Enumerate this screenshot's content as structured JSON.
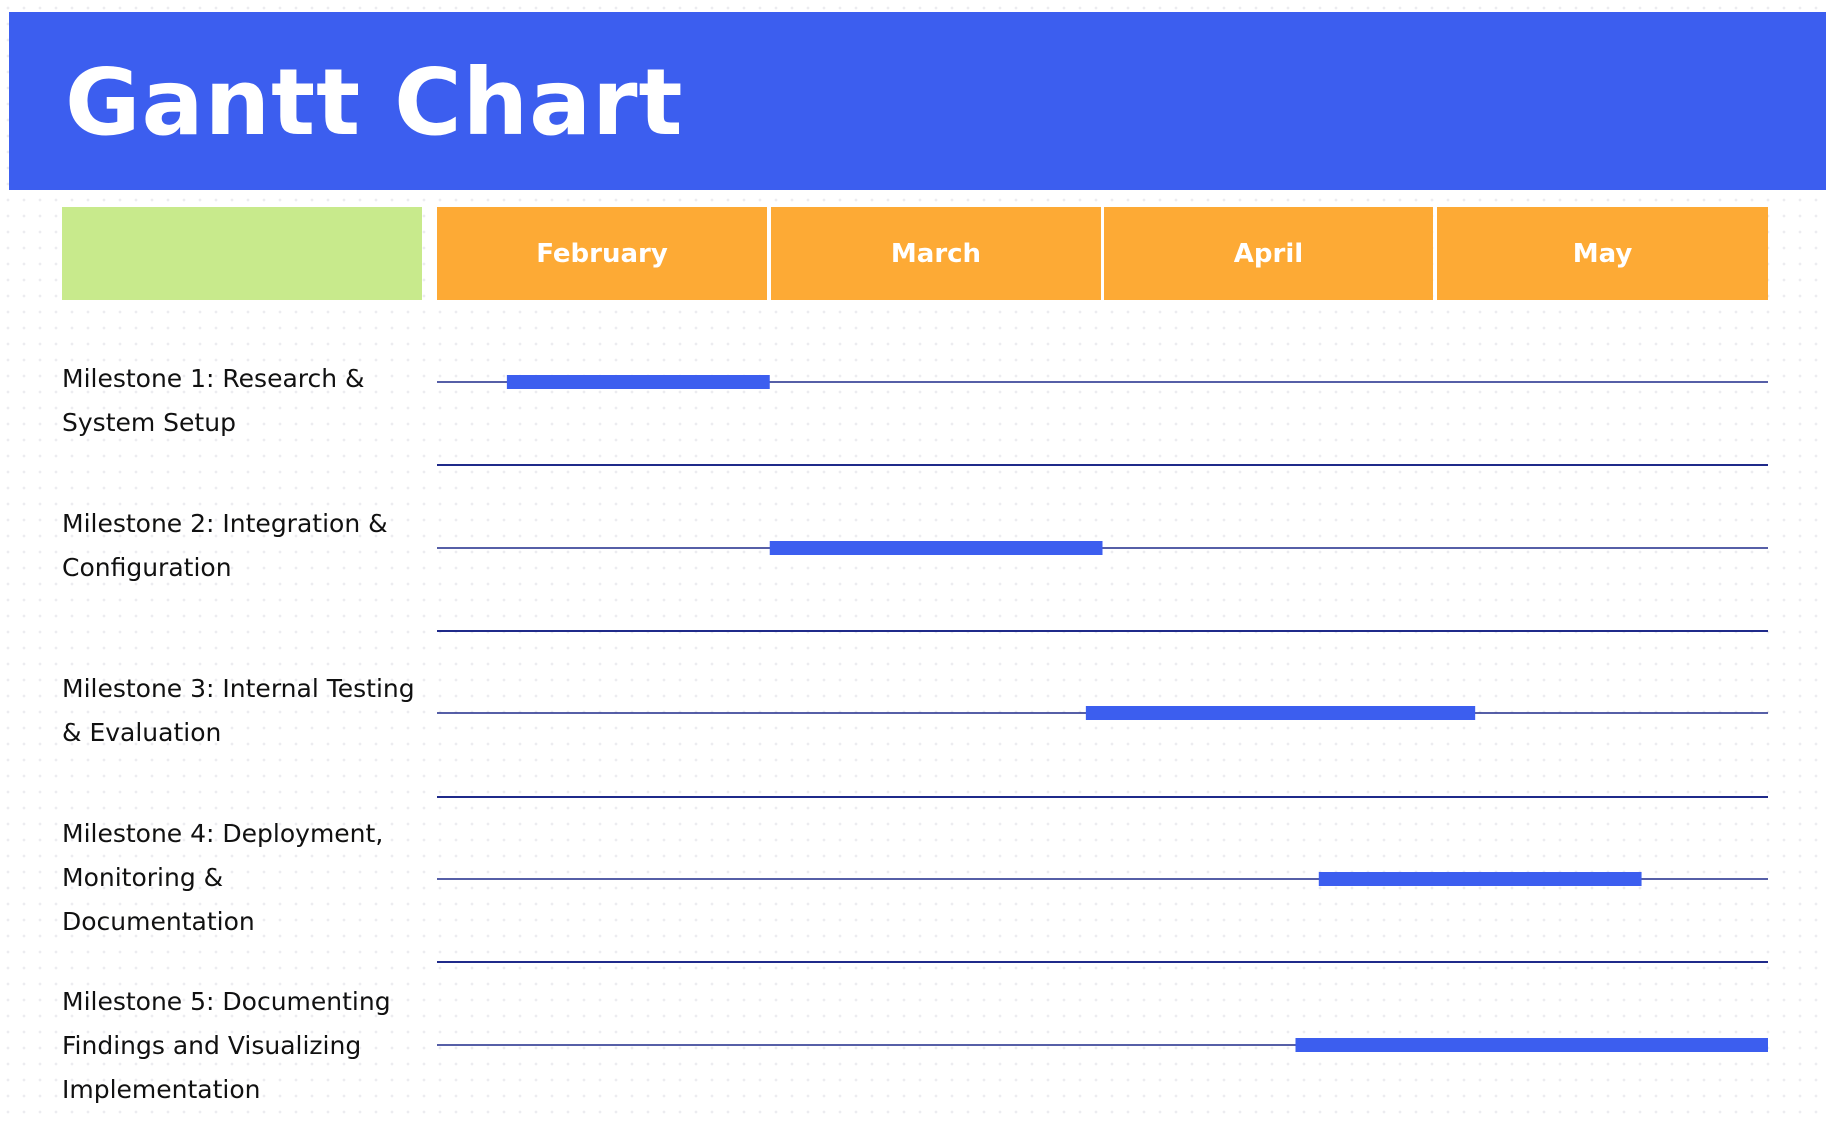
{
  "header": {
    "title": "Gantt Chart",
    "background_color": "#3c5eef"
  },
  "chart_data": {
    "type": "gantt",
    "title": "Gantt Chart",
    "months": [
      "February",
      "March",
      "April",
      "May"
    ],
    "month_header_color": "#fdaa35",
    "label_header_color": "#c8ea8c",
    "bar_color": "#3c5eef",
    "line_color": "#1f2a8a",
    "grid": true,
    "tasks": [
      {
        "label": "Milestone 1: Research & System Setup",
        "start": 0.21,
        "end": 1.0
      },
      {
        "label": "Milestone 2: Integration & Configuration",
        "start": 1.0,
        "end": 2.0
      },
      {
        "label": "Milestone 3: Internal Testing & Evaluation",
        "start": 1.95,
        "end": 3.12
      },
      {
        "label": "Milestone 4: Deployment, Monitoring & Documentation",
        "start": 2.65,
        "end": 3.62
      },
      {
        "label": "Milestone 5: Documenting Findings and Visualizing Implementation",
        "start": 2.58,
        "end": 4.0
      }
    ]
  }
}
